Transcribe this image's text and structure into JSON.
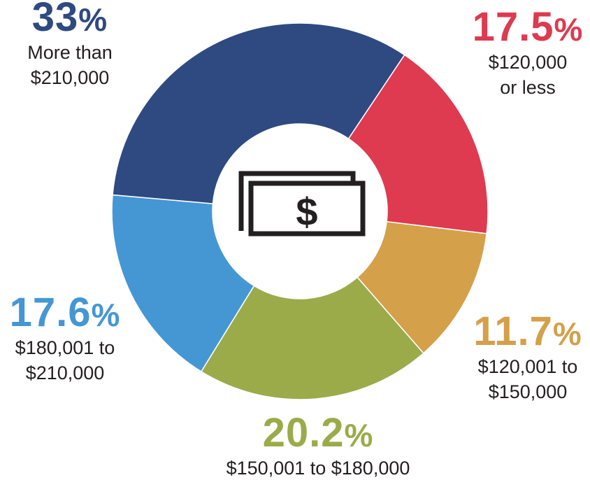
{
  "chart_data": {
    "type": "pie",
    "donut": true,
    "start_angle_deg": 33.8,
    "slices": [
      {
        "value": 17.5,
        "pct_label": "17.5",
        "label_line1": "$120,000",
        "label_line2": "or less",
        "color": "#de3a50"
      },
      {
        "value": 11.7,
        "pct_label": "11.7",
        "label_line1": "$120,001 to",
        "label_line2": "$150,000",
        "color": "#d4a04a"
      },
      {
        "value": 20.2,
        "pct_label": "20.2",
        "label_line1": "$150,001 to $180,000",
        "label_line2": "",
        "color": "#9bab4a"
      },
      {
        "value": 17.6,
        "pct_label": "17.6",
        "label_line1": "$180,001 to",
        "label_line2": "$210,000",
        "color": "#4597d3"
      },
      {
        "value": 33,
        "pct_label": "33",
        "label_line1": "More than",
        "label_line2": "$210,000",
        "color": "#2e4a80"
      }
    ],
    "percent_sign": "%",
    "center_icon": "money-bill-icon",
    "center_icon_text": "$"
  }
}
